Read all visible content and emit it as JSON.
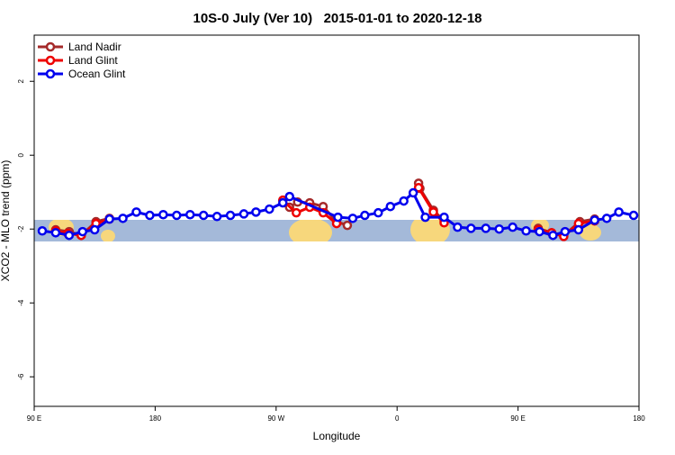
{
  "chart_data": {
    "type": "line",
    "title": "10S-0 July (Ver 10)   2015-01-01 to 2020-12-18",
    "x_label": "Longitude",
    "y_label": "XCO2 - MLO trend (ppm)",
    "xlim": [
      90,
      540
    ],
    "ylim": [
      -6.8,
      3.25
    ],
    "xticks": [
      {
        "value": 90,
        "label": "90 E"
      },
      180,
      {
        "value": 270,
        "label": "90 W"
      },
      {
        "value": 360,
        "label": "0"
      },
      {
        "value": 450,
        "label": "90 E"
      },
      {
        "value": 540,
        "label": "180"
      }
    ],
    "yticks": [
      2,
      0,
      -2,
      -4,
      -6
    ],
    "legend": "top-left",
    "series": [
      {
        "name": "Land Nadir",
        "color": "#a52a2a",
        "x": [
          106,
          116,
          125,
          136,
          146,
          null,
          275,
          280,
          286,
          295,
          305,
          315,
          323,
          null,
          376,
          377,
          387,
          395,
          null,
          465,
          475,
          484,
          496,
          507
        ],
        "values": [
          -2.02,
          -2.07,
          -2.17,
          -1.8,
          -1.71,
          null,
          -1.22,
          -1.41,
          -1.27,
          -1.29,
          -1.39,
          -1.8,
          -1.9,
          null,
          -0.76,
          -0.9,
          -1.49,
          -1.78,
          null,
          -1.98,
          -2.1,
          -2.17,
          -1.8,
          -1.73
        ]
      },
      {
        "name": "Land Glint",
        "color": "#ee0000",
        "x": [
          106,
          115,
          125,
          136,
          146,
          null,
          275,
          285,
          295,
          305,
          315,
          null,
          376,
          387,
          395,
          null,
          465,
          475,
          484,
          495,
          507
        ],
        "values": [
          -2.05,
          -2.12,
          -2.17,
          -1.85,
          -1.73,
          null,
          -1.22,
          -1.56,
          -1.41,
          -1.56,
          -1.85,
          null,
          -0.88,
          -1.54,
          -1.83,
          null,
          -2.02,
          -2.1,
          -2.2,
          -1.85,
          -1.78
        ]
      },
      {
        "name": "Ocean Glint",
        "color": "#0000ee",
        "x": [
          96,
          106,
          116,
          126,
          135,
          146,
          156,
          166,
          176,
          186,
          196,
          206,
          216,
          226,
          236,
          246,
          255,
          265,
          275,
          280,
          316,
          327,
          336,
          346,
          355,
          365,
          372,
          381,
          395,
          405,
          415,
          426,
          436,
          446,
          456,
          466,
          476,
          485,
          495,
          507,
          516,
          525,
          536
        ],
        "values": [
          -2.05,
          -2.1,
          -2.17,
          -2.07,
          -2.02,
          -1.73,
          -1.71,
          -1.54,
          -1.63,
          -1.61,
          -1.63,
          -1.61,
          -1.63,
          -1.66,
          -1.63,
          -1.59,
          -1.54,
          -1.46,
          -1.29,
          -1.12,
          -1.68,
          -1.71,
          -1.63,
          -1.56,
          -1.39,
          -1.24,
          -1.02,
          -1.68,
          -1.68,
          -1.95,
          -1.98,
          -1.98,
          -2.0,
          -1.95,
          -2.05,
          -2.07,
          -2.17,
          -2.07,
          -2.02,
          -1.76,
          -1.71,
          -1.54,
          -1.63
        ]
      }
    ]
  }
}
